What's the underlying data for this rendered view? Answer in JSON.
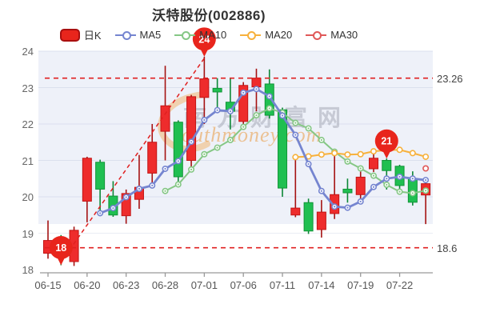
{
  "title": "沃特股份(002886)",
  "legend": {
    "items": [
      {
        "label": "日K",
        "type": "swatch",
        "color": "#e8251c",
        "border": "#a80f0f"
      },
      {
        "label": "MA5",
        "type": "line",
        "color": "#7585d0"
      },
      {
        "label": "MA10",
        "type": "line",
        "color": "#85c785"
      },
      {
        "label": "MA20",
        "type": "line",
        "color": "#f7b13c"
      },
      {
        "label": "MA30",
        "type": "line",
        "color": "#e05858"
      }
    ]
  },
  "watermark": {
    "text_cn": "南方财富网",
    "text_en": "outhmoney.com"
  },
  "axes": {
    "y_ticks": [
      24,
      23,
      22,
      21,
      20,
      19,
      18
    ],
    "x_tick_labels": [
      "06-15",
      "06-20",
      "06-23",
      "06-28",
      "07-01",
      "07-06",
      "07-11",
      "07-14",
      "07-19",
      "07-22"
    ],
    "x_tick_indices": [
      0,
      3,
      6,
      9,
      12,
      15,
      18,
      21,
      24,
      27
    ]
  },
  "annotations": {
    "upper_line": {
      "value": 23.26,
      "label": "23.26"
    },
    "lower_line": {
      "value": 18.6,
      "label": "18.6"
    },
    "balloons": [
      {
        "label": "18",
        "index": 1,
        "value": 18.12
      },
      {
        "label": "24",
        "index": 12,
        "value": 23.85
      },
      {
        "label": "21",
        "index": 26,
        "value": 21.05
      }
    ],
    "trendline": {
      "from_balloon": 0,
      "to_balloon": 1
    }
  },
  "chart_data": {
    "type": "candlestick",
    "title": "沃特股份(002886)",
    "ylim": [
      18,
      24
    ],
    "grid": true,
    "dates": [
      "06-15",
      "06-16",
      "06-17",
      "06-20",
      "06-21",
      "06-22",
      "06-23",
      "06-24",
      "06-27",
      "06-28",
      "06-29",
      "06-30",
      "07-01",
      "07-04",
      "07-05",
      "07-06",
      "07-07",
      "07-08",
      "07-11",
      "07-12",
      "07-13",
      "07-14",
      "07-15",
      "07-18",
      "07-19",
      "07-20",
      "07-21",
      "07-22",
      "07-25",
      "07-26"
    ],
    "open": [
      18.45,
      18.8,
      18.22,
      19.88,
      20.95,
      20.02,
      19.48,
      19.93,
      20.65,
      21.8,
      22.05,
      21.0,
      22.73,
      22.98,
      22.6,
      22.07,
      23.02,
      23.1,
      22.39,
      19.5,
      19.84,
      19.1,
      19.54,
      20.21,
      20.06,
      20.77,
      21.0,
      20.84,
      20.5,
      20.05
    ],
    "close": [
      18.8,
      18.6,
      19.08,
      21.06,
      20.21,
      19.5,
      20.09,
      20.26,
      21.5,
      22.5,
      20.55,
      22.75,
      23.24,
      22.88,
      22.35,
      23.06,
      23.26,
      22.24,
      20.24,
      19.69,
      19.06,
      19.58,
      20.06,
      20.11,
      20.54,
      21.06,
      20.72,
      20.31,
      19.85,
      20.36
    ],
    "high": [
      19.35,
      18.95,
      19.18,
      21.1,
      21.02,
      20.43,
      20.2,
      21.15,
      22.0,
      23.6,
      22.1,
      22.8,
      23.85,
      23.26,
      23.25,
      23.15,
      23.52,
      23.5,
      22.45,
      21.1,
      19.95,
      19.91,
      21.15,
      20.5,
      20.69,
      21.17,
      21.05,
      20.88,
      20.7,
      20.4
    ],
    "low": [
      18.3,
      18.12,
      18.1,
      19.3,
      19.5,
      19.45,
      19.26,
      19.67,
      20.33,
      21.0,
      20.3,
      20.8,
      22.0,
      22.4,
      21.85,
      22.0,
      22.35,
      22.15,
      20.0,
      19.44,
      18.98,
      18.88,
      19.39,
      19.84,
      19.91,
      20.68,
      20.2,
      20.17,
      19.76,
      19.25
    ],
    "series": [
      {
        "name": "MA5",
        "values": [
          null,
          null,
          null,
          null,
          19.55,
          19.69,
          19.99,
          20.22,
          20.31,
          20.77,
          20.98,
          21.51,
          22.11,
          22.38,
          22.35,
          22.86,
          22.96,
          22.76,
          22.23,
          21.7,
          20.9,
          20.16,
          19.73,
          19.7,
          19.87,
          20.27,
          20.5,
          20.55,
          20.5,
          20.46
        ]
      },
      {
        "name": "MA10",
        "values": [
          null,
          null,
          null,
          null,
          null,
          null,
          null,
          null,
          null,
          20.16,
          20.34,
          20.75,
          21.17,
          21.35,
          21.56,
          21.92,
          22.24,
          22.43,
          22.31,
          22.03,
          21.88,
          21.56,
          21.24,
          20.97,
          20.78,
          20.58,
          20.33,
          20.14,
          20.1,
          20.17
        ]
      },
      {
        "name": "MA20",
        "values": [
          null,
          null,
          null,
          null,
          null,
          null,
          null,
          null,
          null,
          null,
          null,
          null,
          null,
          null,
          null,
          null,
          null,
          null,
          null,
          21.09,
          21.11,
          21.16,
          21.2,
          21.16,
          21.17,
          21.25,
          21.28,
          21.29,
          21.2,
          21.1
        ]
      },
      {
        "name": "MA30",
        "values": [
          null,
          null,
          null,
          null,
          null,
          null,
          null,
          null,
          null,
          null,
          null,
          null,
          null,
          null,
          null,
          null,
          null,
          null,
          null,
          null,
          null,
          null,
          null,
          null,
          null,
          null,
          null,
          null,
          null,
          20.78
        ]
      }
    ],
    "colors": {
      "up": "#ee2c2c",
      "up_border": "#c21414",
      "up_wick": "#a51212",
      "down": "#1fbf51",
      "down_border": "#119437",
      "down_wick": "#0c8736",
      "ma5": "#7585d0",
      "ma10": "#85c785",
      "ma20": "#f7b13c",
      "ma30": "#e05858",
      "dashed": "#e02020",
      "balloon": "#e8251c",
      "plot_band": "#eef1f9",
      "grid": "#dbe0ee",
      "grid_light": "#e9ecf4",
      "axis": "#999999"
    }
  }
}
